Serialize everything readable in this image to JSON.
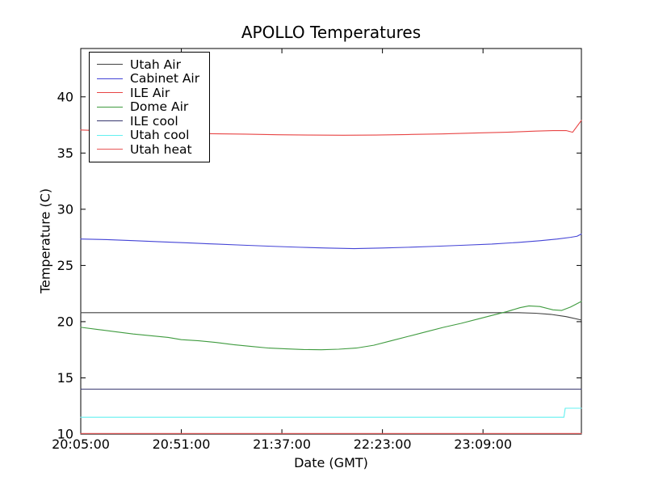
{
  "chart_data": {
    "type": "line",
    "title": "APOLLO Temperatures",
    "xlabel": "Date (GMT)",
    "ylabel": "Temperature (C)",
    "grid": false,
    "legend_position": "upper-left",
    "axis_color": "#000000",
    "background_color": "#ffffff",
    "x_unit": "minutes after 20:05:00 GMT",
    "xlim_minutes": [
      0,
      229
    ],
    "ylim": [
      10,
      44.3
    ],
    "y_ticks": [
      10,
      15,
      20,
      25,
      30,
      35,
      40
    ],
    "x_ticks": [
      {
        "minute": 0,
        "label": "20:05:00"
      },
      {
        "minute": 46,
        "label": "20:51:00"
      },
      {
        "minute": 92,
        "label": "21:37:00"
      },
      {
        "minute": 138,
        "label": "22:23:00"
      },
      {
        "minute": 184,
        "label": "23:09:00"
      }
    ],
    "series": [
      {
        "name": "Utah Air",
        "color": "#404040",
        "points": [
          [
            0,
            20.8
          ],
          [
            100,
            20.8
          ],
          [
            180,
            20.8
          ],
          [
            200,
            20.8
          ],
          [
            208,
            20.75
          ],
          [
            215,
            20.65
          ],
          [
            222,
            20.45
          ],
          [
            229,
            20.15
          ]
        ]
      },
      {
        "name": "Cabinet Air",
        "color": "#4444d6",
        "points": [
          [
            0,
            27.35
          ],
          [
            12,
            27.3
          ],
          [
            25,
            27.2
          ],
          [
            37,
            27.1
          ],
          [
            50,
            27.0
          ],
          [
            62,
            26.9
          ],
          [
            75,
            26.8
          ],
          [
            88,
            26.7
          ],
          [
            100,
            26.62
          ],
          [
            112,
            26.55
          ],
          [
            125,
            26.5
          ],
          [
            138,
            26.55
          ],
          [
            150,
            26.62
          ],
          [
            162,
            26.7
          ],
          [
            175,
            26.8
          ],
          [
            188,
            26.9
          ],
          [
            200,
            27.05
          ],
          [
            210,
            27.2
          ],
          [
            218,
            27.35
          ],
          [
            224,
            27.5
          ],
          [
            227,
            27.6
          ],
          [
            229,
            27.8
          ]
        ]
      },
      {
        "name": "ILE Air",
        "color": "#e84545",
        "points": [
          [
            0,
            37.05
          ],
          [
            15,
            36.95
          ],
          [
            30,
            36.85
          ],
          [
            45,
            36.78
          ],
          [
            60,
            36.72
          ],
          [
            75,
            36.68
          ],
          [
            90,
            36.63
          ],
          [
            105,
            36.6
          ],
          [
            120,
            36.58
          ],
          [
            135,
            36.6
          ],
          [
            150,
            36.65
          ],
          [
            165,
            36.7
          ],
          [
            180,
            36.78
          ],
          [
            195,
            36.85
          ],
          [
            208,
            36.95
          ],
          [
            216,
            37.0
          ],
          [
            222,
            37.0
          ],
          [
            225,
            36.85
          ],
          [
            229,
            37.9
          ]
        ]
      },
      {
        "name": "Dome Air",
        "color": "#3f9b3f",
        "points": [
          [
            0,
            19.5
          ],
          [
            8,
            19.3
          ],
          [
            16,
            19.1
          ],
          [
            24,
            18.9
          ],
          [
            32,
            18.75
          ],
          [
            40,
            18.6
          ],
          [
            46,
            18.4
          ],
          [
            54,
            18.3
          ],
          [
            62,
            18.15
          ],
          [
            70,
            17.95
          ],
          [
            78,
            17.8
          ],
          [
            86,
            17.65
          ],
          [
            94,
            17.58
          ],
          [
            102,
            17.52
          ],
          [
            110,
            17.5
          ],
          [
            118,
            17.55
          ],
          [
            126,
            17.65
          ],
          [
            134,
            17.9
          ],
          [
            142,
            18.3
          ],
          [
            150,
            18.7
          ],
          [
            158,
            19.1
          ],
          [
            166,
            19.5
          ],
          [
            174,
            19.85
          ],
          [
            182,
            20.25
          ],
          [
            189,
            20.6
          ],
          [
            195,
            20.9
          ],
          [
            201,
            21.25
          ],
          [
            205,
            21.4
          ],
          [
            210,
            21.35
          ],
          [
            216,
            21.05
          ],
          [
            220,
            21.0
          ],
          [
            224,
            21.3
          ],
          [
            229,
            21.8
          ]
        ]
      },
      {
        "name": "ILE cool",
        "color": "#35356e",
        "points": [
          [
            0,
            14.0
          ],
          [
            229,
            14.0
          ]
        ]
      },
      {
        "name": "Utah cool",
        "color": "#63f0f0",
        "points": [
          [
            0,
            11.5
          ],
          [
            221,
            11.5
          ],
          [
            221.6,
            12.3
          ],
          [
            229,
            12.3
          ]
        ]
      },
      {
        "name": "Utah heat",
        "color": "#e85555",
        "points": [
          [
            0,
            10.05
          ],
          [
            229,
            10.05
          ]
        ]
      }
    ]
  }
}
